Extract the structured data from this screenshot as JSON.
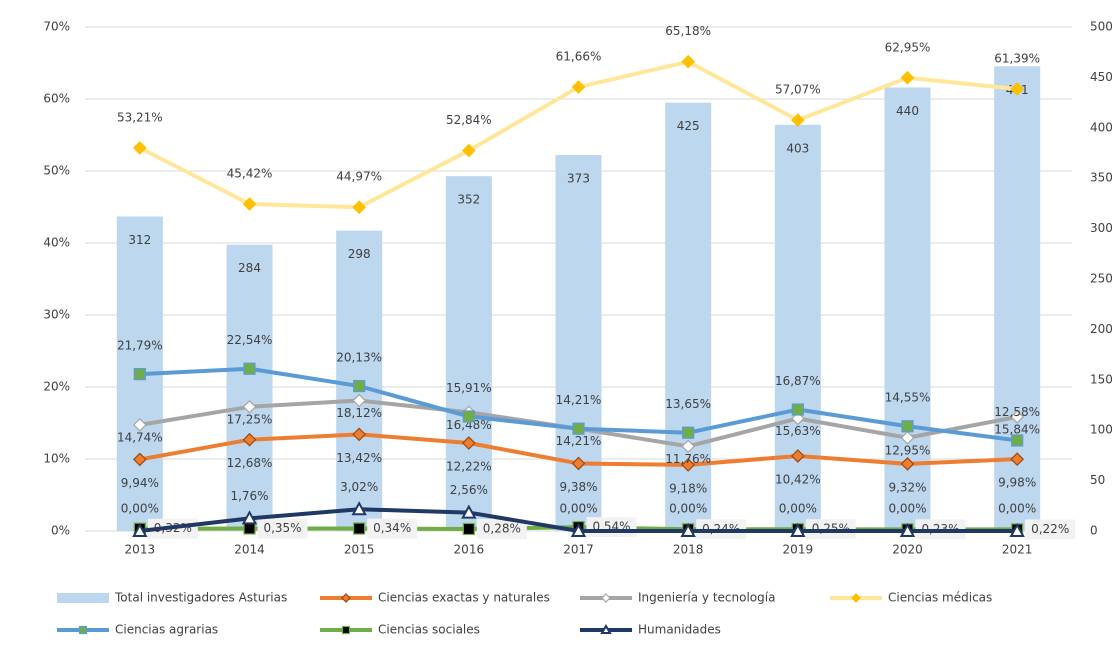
{
  "chart_data": {
    "type": "bar-line",
    "categories": [
      "2013",
      "2014",
      "2015",
      "2016",
      "2017",
      "2018",
      "2019",
      "2020",
      "2021"
    ],
    "ylim": [
      0,
      70
    ],
    "yticks": [
      {
        "value": 0,
        "label": "0%"
      },
      {
        "value": 10,
        "label": "10%"
      },
      {
        "value": 20,
        "label": "20%"
      },
      {
        "value": 30,
        "label": "30%"
      },
      {
        "value": 40,
        "label": "40%"
      },
      {
        "value": 50,
        "label": "50%"
      },
      {
        "value": 60,
        "label": "60%"
      },
      {
        "value": 70,
        "label": "70%"
      }
    ],
    "y2lim": [
      0,
      500
    ],
    "y2ticks": [
      0,
      50,
      100,
      150,
      200,
      250,
      300,
      350,
      400,
      450,
      500
    ],
    "legend": "bottom",
    "series": [
      {
        "name": "Total investigadores Asturias",
        "type": "bar",
        "axis": "y2",
        "color": "#bdd7ee",
        "values": [
          312,
          284,
          298,
          352,
          373,
          425,
          403,
          440,
          461
        ]
      },
      {
        "name": "Ciencias exactas y naturales",
        "type": "line",
        "color": "#ed7d31",
        "marker": "diamond",
        "marker_color": "#ed7d31",
        "values": [
          9.94,
          12.68,
          13.42,
          12.22,
          9.38,
          9.18,
          10.42,
          9.32,
          9.98
        ],
        "value_labels": [
          "9,94%",
          "12,68%",
          "13,42%",
          "12,22%",
          "9,38%",
          "9,18%",
          "10,42%",
          "9,32%",
          "9,98%"
        ]
      },
      {
        "name": "Ingeniería y tecnología",
        "type": "line",
        "color": "#a5a5a5",
        "marker": "diamond",
        "marker_color": "#ffffff",
        "values": [
          14.74,
          17.25,
          18.12,
          16.48,
          14.21,
          11.76,
          15.63,
          12.95,
          15.84
        ],
        "value_labels": [
          "14,74%",
          "17,25%",
          "18,12%",
          "16,48%",
          "14,21%",
          "11,76%",
          "15,63%",
          "12,95%",
          "15,84%"
        ]
      },
      {
        "name": "Ciencias médicas",
        "type": "line",
        "color": "#ffe699",
        "marker": "diamond",
        "marker_color": "#ffc000",
        "values": [
          53.21,
          45.42,
          44.97,
          52.84,
          61.66,
          65.18,
          57.07,
          62.95,
          61.39
        ],
        "value_labels": [
          "53,21%",
          "45,42%",
          "44,97%",
          "52,84%",
          "61,66%",
          "65,18%",
          "57,07%",
          "62,95%",
          "61,39%"
        ]
      },
      {
        "name": "Ciencias agrarias",
        "type": "line",
        "color": "#5b9bd5",
        "marker": "square",
        "marker_color": "#70ad47",
        "values": [
          21.79,
          22.54,
          20.13,
          15.91,
          14.21,
          13.65,
          16.87,
          14.55,
          12.58
        ],
        "value_labels": [
          "21,79%",
          "22,54%",
          "20,13%",
          "15,91%",
          "14,21%",
          "13,65%",
          "16,87%",
          "14,55%",
          "12,58%"
        ]
      },
      {
        "name": "Ciencias sociales",
        "type": "line",
        "color": "#70ad47",
        "marker": "square",
        "marker_color": "#000000",
        "values": [
          0.32,
          0.35,
          0.34,
          0.28,
          0.54,
          0.24,
          0.25,
          0.23,
          0.22
        ],
        "value_labels": [
          "0,32%",
          "0,35%",
          "0,34%",
          "0,28%",
          "0,54%",
          "0,24%",
          "0,25%",
          "0,23%",
          "0,22%"
        ]
      },
      {
        "name": "Humanidades",
        "type": "line",
        "color": "#203864",
        "marker": "triangle",
        "marker_color": "#ffffff",
        "values": [
          0.0,
          1.76,
          3.02,
          2.56,
          0.0,
          0.0,
          0.0,
          0.0,
          0.0
        ],
        "value_labels": [
          "0,00%",
          "1,76%",
          "3,02%",
          "2,56%",
          "0,00%",
          "0,00%",
          "0,00%",
          "0,00%",
          "0,00%"
        ]
      }
    ]
  }
}
